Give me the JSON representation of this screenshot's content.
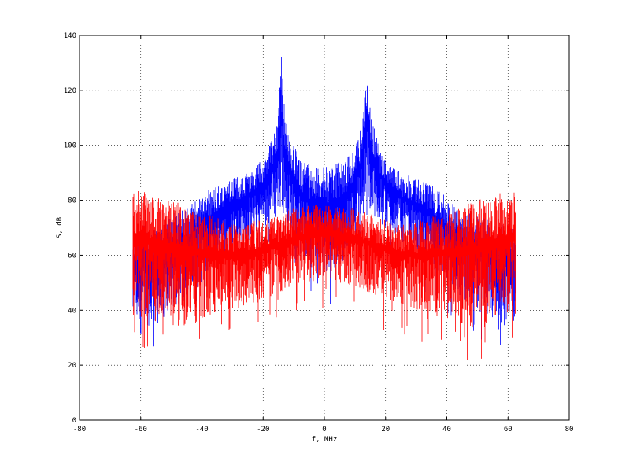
{
  "chart_data": {
    "type": "line",
    "title": "",
    "xlabel": "f, MHz",
    "ylabel": "S, dB",
    "xlim": [
      -80,
      80
    ],
    "ylim": [
      0,
      140
    ],
    "x_ticks": [
      -80,
      -60,
      -40,
      -20,
      0,
      20,
      40,
      60,
      80
    ],
    "y_ticks": [
      0,
      20,
      40,
      60,
      80,
      100,
      120,
      140
    ],
    "grid": true,
    "legend": "none",
    "series": [
      {
        "color": "#0000ff",
        "description": "dense spectrum, envelope upper/lower in dB",
        "x_range": [
          -62.5,
          62.5
        ],
        "envelope_x": [
          -62.5,
          -55,
          -50,
          -45,
          -40,
          -35,
          -30,
          -25,
          -20,
          -17,
          -15,
          -14,
          -13,
          -11,
          -8,
          -5,
          -3,
          0,
          3,
          5,
          8,
          11,
          13,
          14,
          15,
          17,
          20,
          25,
          30,
          35,
          40,
          45,
          50,
          55,
          62.5
        ],
        "envelope_upper": [
          70,
          72,
          75,
          77,
          82,
          86,
          88,
          90,
          95,
          103,
          113,
          133,
          113,
          102,
          96,
          94,
          93,
          92,
          93,
          94,
          96,
          102,
          113,
          133,
          113,
          103,
          95,
          90,
          88,
          86,
          82,
          77,
          75,
          72,
          70
        ],
        "envelope_lower": [
          35,
          34,
          40,
          44,
          50,
          56,
          62,
          66,
          70,
          72,
          74,
          76,
          74,
          70,
          60,
          56,
          54,
          52,
          54,
          56,
          60,
          70,
          74,
          76,
          74,
          72,
          70,
          66,
          62,
          56,
          50,
          44,
          40,
          34,
          35
        ]
      },
      {
        "color": "#ff0000",
        "description": "dense spectrum, envelope upper/lower in dB",
        "x_range": [
          -62.5,
          62.5
        ],
        "envelope_x": [
          -62.5,
          -55,
          -50,
          -45,
          -40,
          -35,
          -30,
          -25,
          -20,
          -15,
          -10,
          -5,
          0,
          5,
          10,
          15,
          20,
          25,
          30,
          35,
          40,
          45,
          50,
          55,
          62.5
        ],
        "envelope_upper": [
          84,
          82,
          80,
          78,
          76,
          74,
          72,
          72,
          73,
          75,
          77,
          78,
          79,
          78,
          77,
          75,
          73,
          72,
          72,
          74,
          76,
          78,
          80,
          82,
          84
        ],
        "envelope_lower": [
          38,
          35,
          32,
          34,
          36,
          38,
          40,
          42,
          44,
          46,
          48,
          50,
          52,
          50,
          48,
          46,
          44,
          42,
          40,
          38,
          36,
          34,
          32,
          35,
          38
        ]
      }
    ]
  }
}
